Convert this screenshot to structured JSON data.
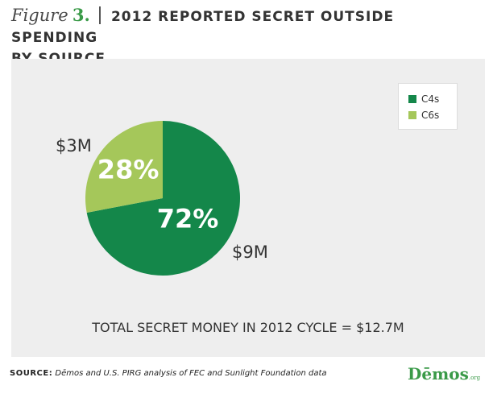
{
  "header": {
    "figure_word": "Figure",
    "figure_number": "3.",
    "title_line1": "2012 REPORTED SECRET OUTSIDE SPENDING",
    "title_line2": "BY SOURCE"
  },
  "chart_data": {
    "type": "pie",
    "categories": [
      "C4s",
      "C6s"
    ],
    "values": [
      72,
      28
    ],
    "percent_labels": [
      "72%",
      "28%"
    ],
    "amount_labels": [
      "$9M",
      "$3M"
    ],
    "colors": [
      "#14874a",
      "#a5c75a"
    ],
    "legend_position": "top-right",
    "title": "",
    "xlabel": "",
    "ylabel": ""
  },
  "legend": {
    "items": [
      {
        "label": "C4s",
        "color": "#14874a"
      },
      {
        "label": "C6s",
        "color": "#a5c75a"
      }
    ]
  },
  "total_text": "TOTAL SECRET MONEY IN 2012 CYCLE = $12.7M",
  "source": {
    "label": "SOURCE:",
    "text": "Dēmos and U.S. PIRG analysis of FEC and Sunlight Foundation data"
  },
  "logo": {
    "text": "Dēmos",
    "suffix": ".org"
  }
}
